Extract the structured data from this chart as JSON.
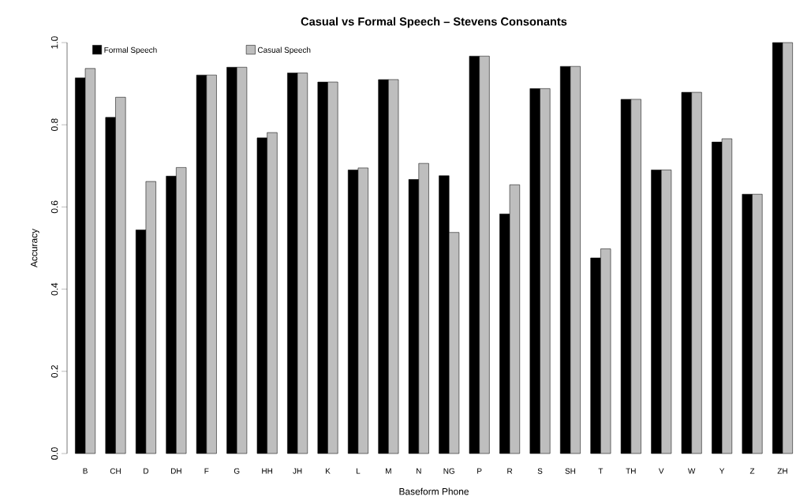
{
  "chart_data": {
    "type": "bar",
    "title": "Casual vs Formal Speech – Stevens Consonants",
    "xlabel": "Baseform Phone",
    "ylabel": "Accuracy",
    "categories": [
      "B",
      "CH",
      "D",
      "DH",
      "F",
      "G",
      "HH",
      "JH",
      "K",
      "L",
      "M",
      "N",
      "NG",
      "P",
      "R",
      "S",
      "SH",
      "T",
      "TH",
      "V",
      "W",
      "Y",
      "Z",
      "ZH"
    ],
    "series": [
      {
        "name": "Formal Speech",
        "color": "#000000",
        "values": [
          0.914,
          0.818,
          0.544,
          0.675,
          0.921,
          0.94,
          0.768,
          0.926,
          0.904,
          0.69,
          0.91,
          0.667,
          0.676,
          0.967,
          0.583,
          0.888,
          0.942,
          0.476,
          0.862,
          0.69,
          0.879,
          0.758,
          0.631,
          1.0
        ]
      },
      {
        "name": "Casual Speech",
        "color": "#bebebe",
        "values": [
          0.937,
          0.867,
          0.662,
          0.696,
          0.921,
          0.94,
          0.781,
          0.926,
          0.904,
          0.695,
          0.91,
          0.706,
          0.538,
          0.967,
          0.654,
          0.888,
          0.942,
          0.498,
          0.862,
          0.69,
          0.879,
          0.766,
          0.631,
          1.0
        ]
      }
    ],
    "ylim": [
      0,
      1
    ],
    "yticks": [
      {
        "value": 0,
        "label": "0.0"
      },
      {
        "value": 0.2,
        "label": "0.2"
      },
      {
        "value": 0.4,
        "label": "0.4"
      },
      {
        "value": 0.6,
        "label": "0.6"
      },
      {
        "value": 0.8,
        "label": "0.8"
      },
      {
        "value": 1,
        "label": "1.0"
      }
    ],
    "legend": "top left"
  }
}
